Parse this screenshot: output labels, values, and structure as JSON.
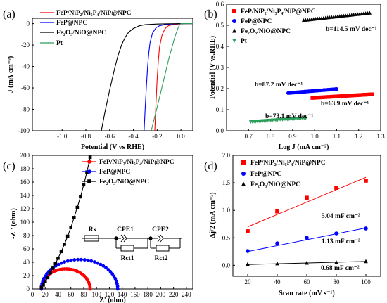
{
  "chart_data": [
    {
      "panel": "(a)",
      "type": "line",
      "xlabel": "Potential (V vs RHE)",
      "ylabel": "J (mA cm⁻²)",
      "xlim": [
        -1.25,
        0.1
      ],
      "ylim": [
        -100,
        5
      ],
      "xticks": [
        "-1.0",
        "-0.8",
        "-0.6",
        "-0.4",
        "-0.2",
        "0.0"
      ],
      "yticks": [
        "0",
        "-20",
        "-40",
        "-60",
        "-80",
        "-100"
      ],
      "series": [
        {
          "name": "FeP/NiP₂/Ni₅P₄/NiP@NPC",
          "color": "#ff0000",
          "x": [
            -0.22,
            -0.21,
            -0.2,
            -0.19,
            -0.18,
            -0.16,
            -0.14,
            -0.12,
            -0.1,
            -0.07,
            -0.04,
            0.0,
            0.05,
            0.1
          ],
          "y": [
            -100,
            -75,
            -52,
            -35,
            -22,
            -11,
            -6,
            -3,
            -1.8,
            -1,
            -0.5,
            -0.2,
            0,
            0
          ]
        },
        {
          "name": "FeP@NPC",
          "color": "#0000ff",
          "x": [
            -0.31,
            -0.3,
            -0.29,
            -0.28,
            -0.27,
            -0.26,
            -0.24,
            -0.21,
            -0.18,
            -0.14,
            -0.1,
            -0.05,
            0.0,
            0.1
          ],
          "y": [
            -100,
            -78,
            -58,
            -40,
            -27,
            -18,
            -9,
            -4,
            -2,
            -1,
            -0.5,
            -0.2,
            0,
            0
          ]
        },
        {
          "name": "Fe₂O₃/NiO@NPC",
          "color": "#000000",
          "x": [
            -0.67,
            -0.64,
            -0.6,
            -0.56,
            -0.53,
            -0.5,
            -0.47,
            -0.44,
            -0.4,
            -0.35,
            -0.3,
            -0.2,
            -0.1,
            0.1
          ],
          "y": [
            -100,
            -83,
            -62,
            -43,
            -30,
            -20,
            -13,
            -8,
            -4.5,
            -2,
            -1,
            -0.4,
            -0.1,
            0
          ]
        },
        {
          "name": "Pt",
          "color": "#2e9e5b",
          "x": [
            -0.25,
            -0.2,
            -0.15,
            -0.1,
            -0.07,
            -0.05,
            -0.03,
            -0.02,
            -0.01,
            0.0,
            0.05,
            0.1
          ],
          "y": [
            -100,
            -78,
            -55,
            -32,
            -20,
            -12,
            -6,
            -3,
            -1,
            0,
            0,
            0
          ]
        }
      ]
    },
    {
      "panel": "(b)",
      "type": "scatter",
      "xlabel": "Log J (mA cm⁻²)",
      "ylabel": "Potential (V vs.RHE)",
      "xlim": [
        0.6,
        1.3
      ],
      "ylim": [
        0.0,
        0.6
      ],
      "xticks": [
        "0.7",
        "0.8",
        "0.9",
        "1.0",
        "1.1",
        "1.2",
        "1.3"
      ],
      "yticks": [
        "0.0",
        "0.1",
        "0.2",
        "0.3",
        "0.4",
        "0.5",
        "0.6"
      ],
      "series": [
        {
          "name": "FeP/NiP₂/Ni₅P₄/NiP@NPC",
          "color": "#ff0000",
          "marker": "square",
          "x_range": [
            0.99,
            1.26
          ],
          "y_range": [
            0.156,
            0.173
          ]
        },
        {
          "name": "FeP@NPC",
          "color": "#0000ff",
          "marker": "circle",
          "x_range": [
            0.88,
            1.1
          ],
          "y_range": [
            0.179,
            0.198
          ]
        },
        {
          "name": "Fe₂O₃/NiO@NPC",
          "color": "#000000",
          "marker": "triangle",
          "x_range": [
            0.95,
            1.25
          ],
          "y_range": [
            0.523,
            0.558
          ]
        },
        {
          "name": "Pt",
          "color": "#2e9e5b",
          "marker": "triangle-down",
          "x_range": [
            0.71,
            0.96
          ],
          "y_range": [
            0.042,
            0.06
          ]
        }
      ],
      "annotations": [
        "b=114.5 mV dec⁻¹",
        "b=87.2 mV dec⁻¹",
        "b=63.9 mV dec⁻¹",
        "b=73.1 mV dec⁻¹"
      ]
    },
    {
      "panel": "(c)",
      "type": "scatter",
      "xlabel": "Z' (ohm)",
      "ylabel": "-Z'' (ohm)",
      "xlim": [
        0,
        250
      ],
      "ylim": [
        0,
        200
      ],
      "xticks": [
        "0",
        "20",
        "40",
        "60",
        "80",
        "100",
        "120",
        "140",
        "160",
        "180",
        "200",
        "220",
        "240"
      ],
      "yticks": [
        "0",
        "20",
        "40",
        "60",
        "80",
        "100",
        "120",
        "140",
        "160",
        "180",
        "200"
      ],
      "series": [
        {
          "name": "FeP/NiP₂/Ni₅P₄/NiP@NPC",
          "color": "#ff0000",
          "marker": "circle",
          "arc": {
            "x_start": 14,
            "x_end": 90,
            "peak": 30
          }
        },
        {
          "name": "FeP@NPC",
          "color": "#0000ff",
          "marker": "circle",
          "arc": {
            "x_start": 14,
            "x_end": 133,
            "peak": 44
          }
        },
        {
          "name": "Fe₂O₃/NiO@NPC",
          "color": "#000000",
          "marker": "square",
          "x": [
            14,
            17,
            20,
            24,
            28,
            32,
            36,
            40,
            45,
            50,
            55,
            60,
            65,
            70,
            75,
            80,
            85,
            90
          ],
          "y": [
            2,
            6,
            11,
            17,
            24,
            31,
            38,
            46,
            56,
            67,
            79,
            92,
            107,
            122,
            138,
            156,
            175,
            197
          ]
        }
      ],
      "circuit": {
        "labels": [
          "Rs",
          "CPE1",
          "CPE2",
          "Rct1",
          "Rct2"
        ]
      }
    },
    {
      "panel": "(d)",
      "type": "scatter",
      "xlabel": "Scan rate (mV s⁻¹)",
      "ylabel": "Δj/2 (mA cm⁻²)",
      "xlim": [
        10,
        110
      ],
      "ylim": [
        -0.2,
        2.0
      ],
      "xticks": [
        "20",
        "40",
        "60",
        "80",
        "100"
      ],
      "yticks": [
        "0.0",
        "0.5",
        "1.0",
        "1.5",
        "2.0"
      ],
      "series": [
        {
          "name": "FeP/NiP₂/Ni₅P₄/NiP@NPC",
          "color": "#ff0000",
          "marker": "square",
          "x": [
            20,
            40,
            60,
            80,
            100
          ],
          "y": [
            0.62,
            0.98,
            1.23,
            1.41,
            1.54
          ],
          "fit": {
            "slope_label": "5.04 mF cm⁻²",
            "y0": 0.7,
            "y1": 1.6
          }
        },
        {
          "name": "FeP@NPC",
          "color": "#0000ff",
          "marker": "circle",
          "x": [
            20,
            40,
            60,
            80,
            100
          ],
          "y": [
            0.26,
            0.4,
            0.5,
            0.58,
            0.67
          ],
          "fit": {
            "slope_label": "1.13 mF cm⁻²",
            "y0": 0.25,
            "y1": 0.68
          }
        },
        {
          "name": "Fe₂O₃/NiO@NPC",
          "color": "#000000",
          "marker": "triangle",
          "x": [
            20,
            40,
            60,
            80,
            100
          ],
          "y": [
            0.02,
            0.03,
            0.04,
            0.05,
            0.07
          ],
          "fit": {
            "slope_label": "0.68 mF cm⁻²",
            "y0": 0.015,
            "y1": 0.07
          }
        }
      ]
    }
  ]
}
